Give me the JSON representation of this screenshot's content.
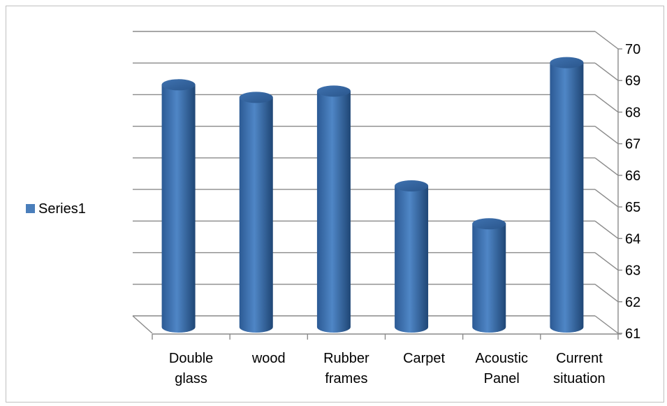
{
  "chart_data": {
    "type": "bar",
    "style": "3d-cylinder",
    "categories": [
      [
        "Double",
        "glass"
      ],
      [
        "wood"
      ],
      [
        "Rubber",
        "frames"
      ],
      [
        "Carpet"
      ],
      [
        "Acoustic",
        "Panel"
      ],
      [
        "Current",
        "situation"
      ]
    ],
    "series": [
      {
        "name": "Series1",
        "color": "#4a7ebb",
        "values": [
          68.6,
          68.2,
          68.4,
          65.4,
          64.2,
          69.3
        ]
      }
    ],
    "ylim": [
      61,
      70
    ],
    "yticks": [
      61,
      62,
      63,
      64,
      65,
      66,
      67,
      68,
      69,
      70
    ],
    "grid": true,
    "legend_position": "left"
  }
}
